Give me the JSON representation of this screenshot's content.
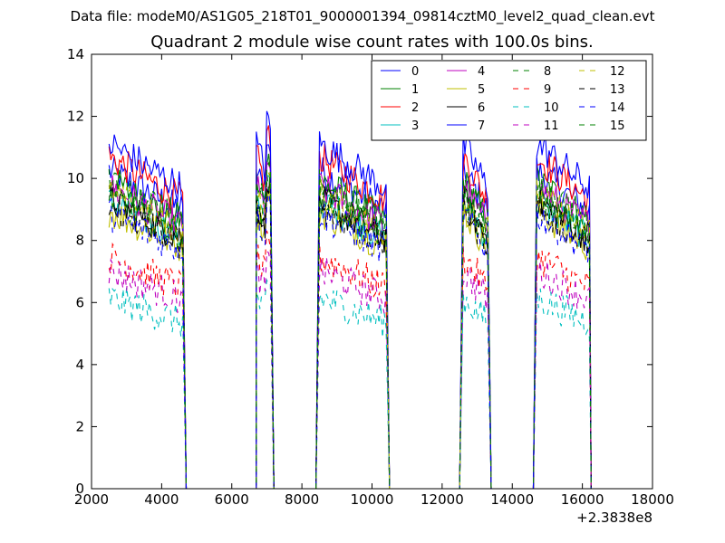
{
  "chart_data": {
    "type": "line",
    "suptitle": "Data file: modeM0/AS1G05_218T01_9000001394_09814cztM0_level2_quad_clean.evt",
    "title": "Quadrant 2 module wise count rates with 100.0s bins.",
    "xlabel": "",
    "ylabel": "",
    "x_offset_label": "+2.3838e8",
    "xlim": [
      2000,
      18000
    ],
    "ylim": [
      0,
      14
    ],
    "xticks": [
      2000,
      4000,
      6000,
      8000,
      10000,
      12000,
      14000,
      16000,
      18000
    ],
    "yticks": [
      0,
      2,
      4,
      6,
      8,
      10,
      12,
      14
    ],
    "grid": false,
    "legend": {
      "placement": "top-right",
      "columns": 4
    },
    "segments": [
      {
        "start": 2500,
        "end": 4600,
        "drop_end": 4700
      },
      {
        "start": 6700,
        "end": 7100,
        "rise_start": 6700,
        "drop_end": 7200
      },
      {
        "start": 8500,
        "end": 10400,
        "rise_start": 8400,
        "drop_end": 10500
      },
      {
        "start": 12600,
        "end": 13300,
        "rise_start": 12500,
        "drop_end": 13400
      },
      {
        "start": 14700,
        "end": 16200,
        "rise_start": 14600,
        "drop_end": 16250
      }
    ],
    "series": [
      {
        "name": "0",
        "color": "#0000ff",
        "dash": "solid",
        "level": 9.5
      },
      {
        "name": "1",
        "color": "#008000",
        "dash": "solid",
        "level": 9.2
      },
      {
        "name": "2",
        "color": "#ff0000",
        "dash": "solid",
        "level": 9.9
      },
      {
        "name": "3",
        "color": "#00bfbf",
        "dash": "solid",
        "level": 8.6
      },
      {
        "name": "4",
        "color": "#bf00bf",
        "dash": "solid",
        "level": 9.0
      },
      {
        "name": "5",
        "color": "#bfbf00",
        "dash": "solid",
        "level": 8.3
      },
      {
        "name": "6",
        "color": "#000000",
        "dash": "solid",
        "level": 8.6
      },
      {
        "name": "7",
        "color": "#0000ff",
        "dash": "solid",
        "level": 10.3
      },
      {
        "name": "8",
        "color": "#008000",
        "dash": "dashed",
        "level": 9.1
      },
      {
        "name": "9",
        "color": "#ff0000",
        "dash": "dashed",
        "level": 6.9
      },
      {
        "name": "10",
        "color": "#00bfbf",
        "dash": "dashed",
        "level": 5.7
      },
      {
        "name": "11",
        "color": "#bf00bf",
        "dash": "dashed",
        "level": 6.5
      },
      {
        "name": "12",
        "color": "#bfbf00",
        "dash": "dashed",
        "level": 8.8
      },
      {
        "name": "13",
        "color": "#000000",
        "dash": "dashed",
        "level": 8.4
      },
      {
        "name": "14",
        "color": "#0000ff",
        "dash": "dashed",
        "level": 8.2
      },
      {
        "name": "15",
        "color": "#008000",
        "dash": "dashed",
        "level": 8.7
      }
    ]
  }
}
